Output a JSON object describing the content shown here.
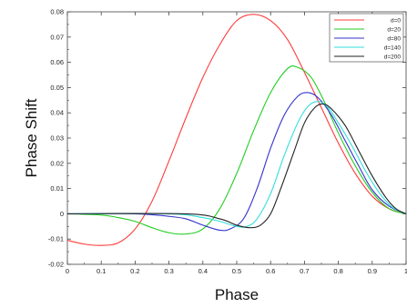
{
  "chart_data": {
    "type": "line",
    "title": "",
    "xlabel": "Phase",
    "ylabel": "Phase Shift",
    "xlim": [
      0,
      1
    ],
    "ylim": [
      -0.02,
      0.08
    ],
    "x_ticks": [
      0,
      0.1,
      0.2,
      0.3,
      0.4,
      0.5,
      0.6,
      0.7,
      0.8,
      0.9,
      1
    ],
    "x_tick_labels": [
      "0",
      "0.1",
      "0.2",
      "0.3",
      "0.4",
      "0.5",
      "0.6",
      "0.7",
      "0.8",
      "0.9",
      "1"
    ],
    "y_ticks": [
      -0.02,
      -0.01,
      0,
      0.01,
      0.02,
      0.03,
      0.04,
      0.05,
      0.06,
      0.07,
      0.08
    ],
    "y_tick_labels": [
      "-0.02",
      "-0.01",
      "0",
      "0.01",
      "0.02",
      "0.03",
      "0.04",
      "0.05",
      "0.06",
      "0.07",
      "0.08"
    ],
    "grid": false,
    "legend_position": "top-right",
    "series": [
      {
        "name": "d=0",
        "color": "#ff3b3b",
        "points": [
          [
            0,
            -0.0105
          ],
          [
            0.05,
            -0.012
          ],
          [
            0.1,
            -0.0125
          ],
          [
            0.15,
            -0.0115
          ],
          [
            0.2,
            -0.006
          ],
          [
            0.25,
            0.005
          ],
          [
            0.3,
            0.021
          ],
          [
            0.35,
            0.038
          ],
          [
            0.4,
            0.054
          ],
          [
            0.45,
            0.067
          ],
          [
            0.5,
            0.0765
          ],
          [
            0.55,
            0.079
          ],
          [
            0.6,
            0.0765
          ],
          [
            0.65,
            0.069
          ],
          [
            0.7,
            0.056
          ],
          [
            0.75,
            0.042
          ],
          [
            0.8,
            0.028
          ],
          [
            0.85,
            0.016
          ],
          [
            0.9,
            0.007
          ],
          [
            0.95,
            0.002
          ],
          [
            1,
            0
          ]
        ]
      },
      {
        "name": "d=20",
        "color": "#22cc22",
        "points": [
          [
            0,
            0
          ],
          [
            0.1,
            -0.0005
          ],
          [
            0.15,
            -0.0015
          ],
          [
            0.2,
            -0.003
          ],
          [
            0.25,
            -0.0055
          ],
          [
            0.3,
            -0.0075
          ],
          [
            0.35,
            -0.008
          ],
          [
            0.4,
            -0.006
          ],
          [
            0.45,
            0.002
          ],
          [
            0.5,
            0.016
          ],
          [
            0.55,
            0.033
          ],
          [
            0.6,
            0.048
          ],
          [
            0.65,
            0.0575
          ],
          [
            0.68,
            0.058
          ],
          [
            0.72,
            0.054
          ],
          [
            0.76,
            0.044
          ],
          [
            0.8,
            0.032
          ],
          [
            0.85,
            0.019
          ],
          [
            0.9,
            0.0085
          ],
          [
            0.95,
            0.002
          ],
          [
            1,
            0
          ]
        ]
      },
      {
        "name": "d=80",
        "color": "#3333cc",
        "points": [
          [
            0,
            0
          ],
          [
            0.2,
            0
          ],
          [
            0.3,
            -0.001
          ],
          [
            0.35,
            -0.002
          ],
          [
            0.4,
            -0.0045
          ],
          [
            0.45,
            -0.0065
          ],
          [
            0.48,
            -0.006
          ],
          [
            0.52,
            -0.002
          ],
          [
            0.56,
            0.01
          ],
          [
            0.6,
            0.026
          ],
          [
            0.64,
            0.039
          ],
          [
            0.68,
            0.0465
          ],
          [
            0.71,
            0.048
          ],
          [
            0.74,
            0.046
          ],
          [
            0.78,
            0.039
          ],
          [
            0.82,
            0.029
          ],
          [
            0.86,
            0.019
          ],
          [
            0.9,
            0.0095
          ],
          [
            0.95,
            0.003
          ],
          [
            1,
            0
          ]
        ]
      },
      {
        "name": "d=140",
        "color": "#33dddd",
        "points": [
          [
            0,
            0
          ],
          [
            0.3,
            0
          ],
          [
            0.4,
            -0.0015
          ],
          [
            0.45,
            -0.003
          ],
          [
            0.5,
            -0.005
          ],
          [
            0.53,
            -0.005
          ],
          [
            0.56,
            -0.002
          ],
          [
            0.6,
            0.008
          ],
          [
            0.64,
            0.023
          ],
          [
            0.68,
            0.036
          ],
          [
            0.71,
            0.0425
          ],
          [
            0.74,
            0.0445
          ],
          [
            0.77,
            0.042
          ],
          [
            0.8,
            0.036
          ],
          [
            0.84,
            0.027
          ],
          [
            0.88,
            0.017
          ],
          [
            0.92,
            0.0085
          ],
          [
            0.96,
            0.0025
          ],
          [
            1,
            0
          ]
        ]
      },
      {
        "name": "d=200",
        "color": "#222222",
        "points": [
          [
            0,
            0
          ],
          [
            0.35,
            0
          ],
          [
            0.45,
            -0.002
          ],
          [
            0.5,
            -0.0045
          ],
          [
            0.54,
            -0.0055
          ],
          [
            0.57,
            -0.0045
          ],
          [
            0.6,
            0
          ],
          [
            0.63,
            0.01
          ],
          [
            0.67,
            0.025
          ],
          [
            0.7,
            0.036
          ],
          [
            0.73,
            0.042
          ],
          [
            0.755,
            0.0435
          ],
          [
            0.78,
            0.0415
          ],
          [
            0.82,
            0.035
          ],
          [
            0.86,
            0.025
          ],
          [
            0.9,
            0.015
          ],
          [
            0.94,
            0.0065
          ],
          [
            0.97,
            0.002
          ],
          [
            1,
            0
          ]
        ]
      }
    ]
  }
}
